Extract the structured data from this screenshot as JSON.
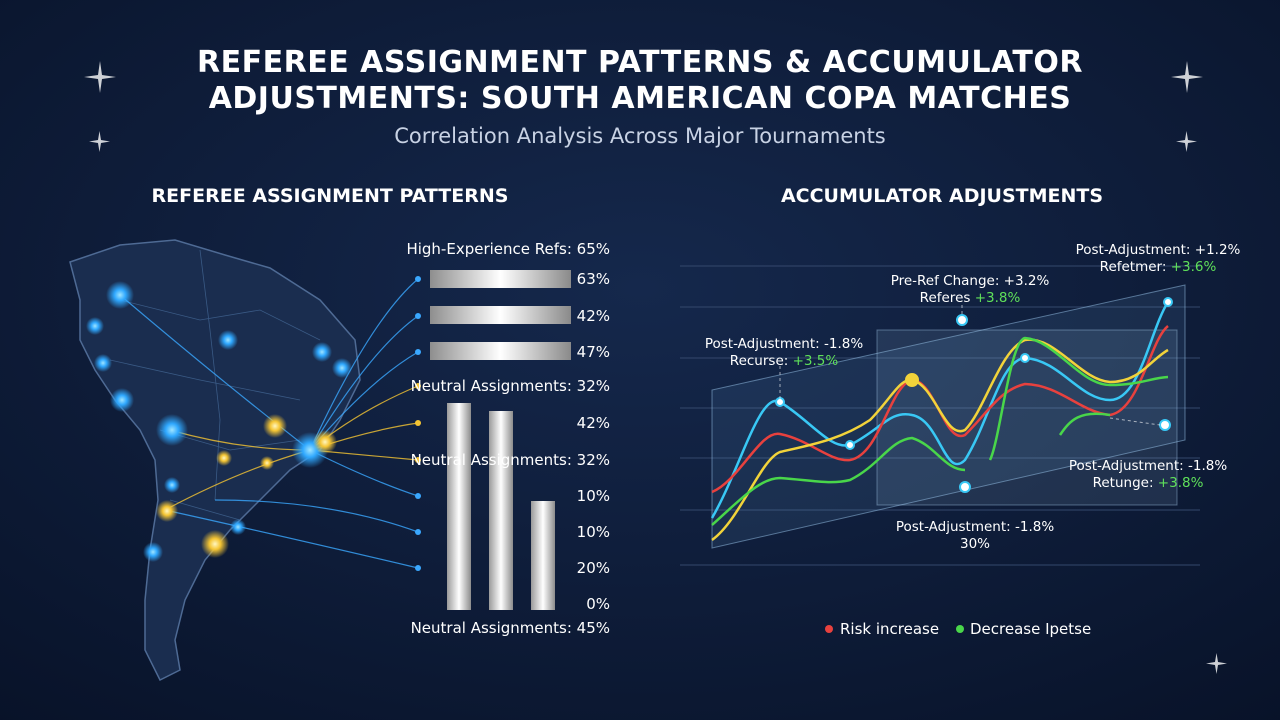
{
  "header": {
    "title_line1": "REFEREE ASSIGNMENT PATTERNS & ACCUMULATOR",
    "title_line2": "ADJUSTMENTS: SOUTH AMERICAN COPA MATCHES",
    "subtitle": "Correlation Analysis Across Major Tournaments"
  },
  "left_panel": {
    "title": "REFEREE ASSIGNMENT PATTERNS",
    "labels": [
      "High-Experience Refs: 65%",
      "63%",
      "42%",
      "47%",
      "Neutral Assignments: 32%",
      "42%",
      "Neutral Assignments: 32%",
      "10%",
      "10%",
      "20%",
      "0%",
      "Neutral Assignments: 45%"
    ]
  },
  "right_panel": {
    "title": "ACCUMULATOR ADJUSTMENTS",
    "annotations": [
      {
        "line1": "Post-Adjustment: +1.2%",
        "label": "Refetmer:",
        "value": "+3.6%"
      },
      {
        "line1": "Pre-Ref Change: +3.2%",
        "label": "Referes",
        "value": "+3.8%"
      },
      {
        "line1": "Post-Adjustment: -1.8%",
        "label": "Recurse:",
        "value": "+3.5%"
      },
      {
        "line1": "Post-Adjustment: -1.8%",
        "label": "Retunge:",
        "value": "+3.8%"
      },
      {
        "line1": "Post-Adjustment: -1.8%",
        "label": "",
        "value": "30%"
      }
    ],
    "legend": [
      "Risk increase",
      "Decrease Ipetse"
    ]
  }
}
